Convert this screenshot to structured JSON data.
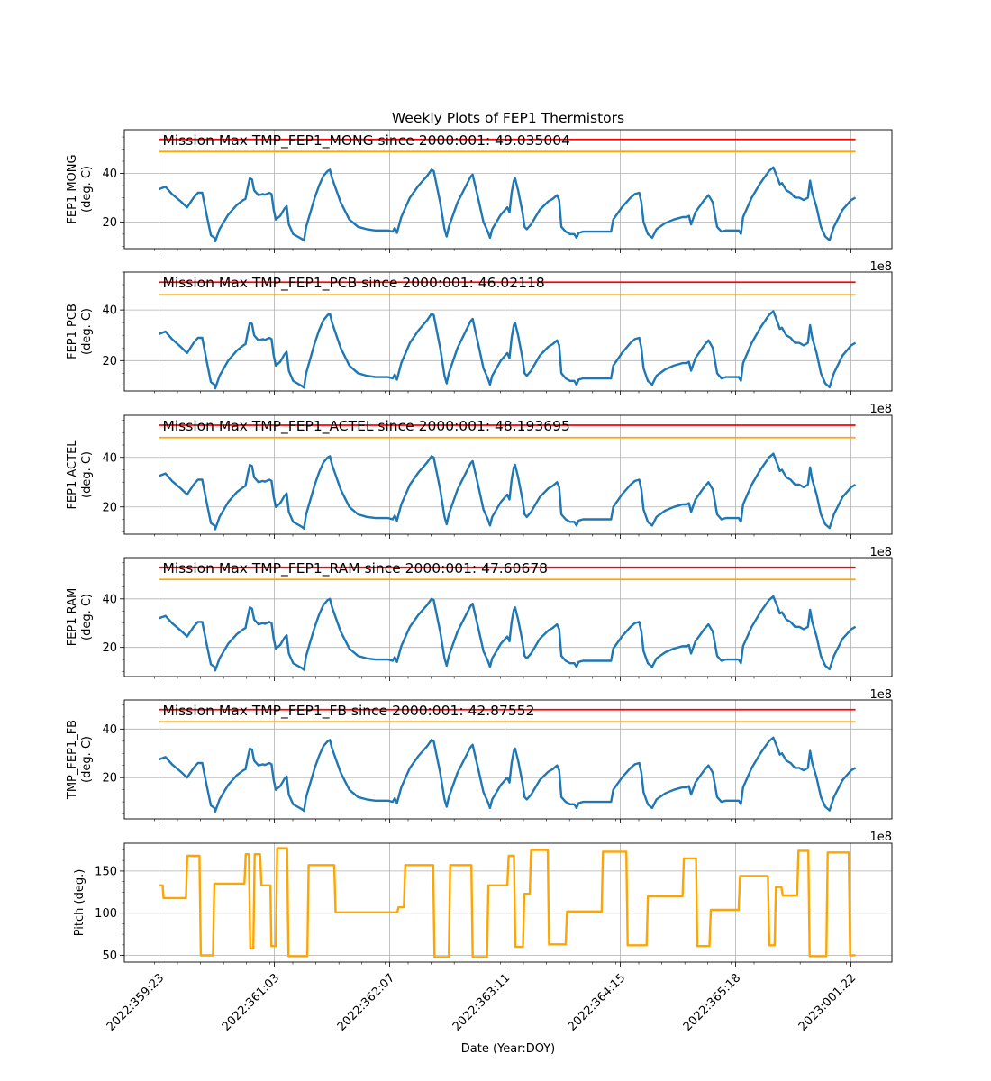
{
  "chart_data": {
    "type": "line",
    "title": "Weekly Plots of FEP1 Thermistors",
    "xlabel": "Date (Year:DOY)",
    "x_tick_labels": [
      "2022:359:23",
      "2022:361:03",
      "2022:362:07",
      "2022:363:11",
      "2022:364:15",
      "2022:365:18",
      "2023:001:22"
    ],
    "offset_text": "1e8",
    "x_range_hours": [
      -2,
      152
    ],
    "colors": {
      "data": "#1f77b4",
      "red_limit": "#ff0000",
      "yellow_limit": "#ffa500",
      "pitch": "#ffa500",
      "grid": "#b0b0b0"
    },
    "panels": [
      {
        "id": "mong",
        "ylabel": [
          "FEP1 MONG",
          "(deg. C)"
        ],
        "ylim": [
          9,
          58
        ],
        "yticks": [
          20,
          40
        ],
        "red_limit": 54,
        "yellow_limit": 49,
        "annotation": "Mission Max TMP_FEP1_MONG since 2000:001: 49.035004",
        "offset": 0,
        "show_offset": true
      },
      {
        "id": "pcb",
        "ylabel": [
          "FEP1 PCB",
          "(deg. C)"
        ],
        "ylim": [
          8,
          55
        ],
        "yticks": [
          20,
          40
        ],
        "red_limit": 51,
        "yellow_limit": 46,
        "annotation": "Mission Max TMP_FEP1_PCB since 2000:001: 46.02118",
        "offset": -3,
        "show_offset": true
      },
      {
        "id": "actel",
        "ylabel": [
          "FEP1 ACTEL",
          "(deg. C)"
        ],
        "ylim": [
          9,
          57
        ],
        "yticks": [
          20,
          40
        ],
        "red_limit": 53,
        "yellow_limit": 48,
        "annotation": "Mission Max TMP_FEP1_ACTEL since 2000:001: 48.193695",
        "offset": -1,
        "show_offset": true
      },
      {
        "id": "ram",
        "ylabel": [
          "FEP1 RAM",
          "(deg. C)"
        ],
        "ylim": [
          8,
          57
        ],
        "yticks": [
          20,
          40
        ],
        "red_limit": 53,
        "yellow_limit": 48,
        "annotation": "Mission Max TMP_FEP1_RAM since 2000:001: 47.60678",
        "offset": -1.5,
        "show_offset": true
      },
      {
        "id": "fb",
        "ylabel": [
          "TMP_FEP1_FB",
          "(deg. C)"
        ],
        "ylim": [
          3,
          52
        ],
        "yticks": [
          20,
          40
        ],
        "red_limit": 48,
        "yellow_limit": 43,
        "annotation": "Mission Max TMP_FEP1_FB since 2000:001: 42.87552",
        "offset": -6,
        "show_offset": true
      }
    ],
    "temperature_profile_hours": [
      [
        0,
        33.5
      ],
      [
        1.5,
        34.5
      ],
      [
        3,
        31.5
      ],
      [
        5,
        28.5
      ],
      [
        6.5,
        26
      ],
      [
        8,
        30
      ],
      [
        9,
        32
      ],
      [
        10,
        32
      ],
      [
        11,
        23
      ],
      [
        12,
        14.5
      ],
      [
        12.8,
        13.5
      ],
      [
        13,
        12
      ],
      [
        14,
        17
      ],
      [
        16,
        23
      ],
      [
        18,
        27
      ],
      [
        19.5,
        29
      ],
      [
        20,
        29.5
      ],
      [
        20.5,
        34
      ],
      [
        21,
        38
      ],
      [
        21.5,
        37.5
      ],
      [
        22,
        33
      ],
      [
        23,
        31
      ],
      [
        24,
        31.5
      ],
      [
        24.5,
        31.2
      ],
      [
        25.5,
        32
      ],
      [
        26,
        31.5
      ],
      [
        26.5,
        25
      ],
      [
        27,
        21
      ],
      [
        28,
        22.5
      ],
      [
        29,
        25.5
      ],
      [
        29.5,
        26.5
      ],
      [
        30,
        19
      ],
      [
        31,
        15
      ],
      [
        32,
        14
      ],
      [
        33,
        13
      ],
      [
        33.5,
        12.3
      ],
      [
        34,
        18
      ],
      [
        35,
        24
      ],
      [
        36,
        30
      ],
      [
        37,
        35
      ],
      [
        38,
        39
      ],
      [
        39,
        41
      ],
      [
        39.5,
        41.5
      ],
      [
        40,
        38
      ],
      [
        42,
        28
      ],
      [
        44,
        21
      ],
      [
        46,
        18
      ],
      [
        48,
        17
      ],
      [
        50,
        16.5
      ],
      [
        52,
        16.5
      ],
      [
        53,
        16.5
      ],
      [
        54,
        16
      ],
      [
        54.5,
        17.5
      ],
      [
        55,
        15.5
      ],
      [
        56,
        22
      ],
      [
        58,
        30
      ],
      [
        60,
        35
      ],
      [
        62,
        39
      ],
      [
        63,
        41.5
      ],
      [
        63.5,
        41
      ],
      [
        65,
        28
      ],
      [
        66,
        17
      ],
      [
        66.5,
        14
      ],
      [
        67,
        18
      ],
      [
        69,
        28
      ],
      [
        71,
        35
      ],
      [
        72,
        38.5
      ],
      [
        72.5,
        39.5
      ],
      [
        74,
        28
      ],
      [
        75,
        20
      ],
      [
        76,
        16
      ],
      [
        76.5,
        13.5
      ],
      [
        77,
        17
      ],
      [
        79,
        23
      ],
      [
        80.5,
        26
      ],
      [
        81,
        24
      ],
      [
        81.5,
        32
      ],
      [
        82,
        37
      ],
      [
        82.3,
        38
      ],
      [
        83,
        33
      ],
      [
        84,
        24
      ],
      [
        84.5,
        18
      ],
      [
        85,
        17
      ],
      [
        86,
        19
      ],
      [
        88,
        25
      ],
      [
        90,
        28.5
      ],
      [
        91,
        29.5
      ],
      [
        92,
        31
      ],
      [
        92.5,
        29
      ],
      [
        93,
        18
      ],
      [
        94,
        16
      ],
      [
        95,
        15
      ],
      [
        96,
        15
      ],
      [
        96.5,
        13.5
      ],
      [
        97,
        15.5
      ],
      [
        98,
        16
      ],
      [
        100,
        16
      ],
      [
        102,
        16
      ],
      [
        104,
        16
      ],
      [
        104.5,
        16
      ],
      [
        105,
        21
      ],
      [
        107,
        26
      ],
      [
        109,
        30
      ],
      [
        110,
        31.5
      ],
      [
        111,
        32
      ],
      [
        111.5,
        28
      ],
      [
        112,
        20
      ],
      [
        113,
        15
      ],
      [
        114,
        13.5
      ],
      [
        115,
        17
      ],
      [
        117,
        19.5
      ],
      [
        119,
        21
      ],
      [
        121,
        22
      ],
      [
        122,
        22
      ],
      [
        122.5,
        22.5
      ],
      [
        123,
        19
      ],
      [
        124,
        24
      ],
      [
        126,
        29
      ],
      [
        127,
        31
      ],
      [
        128,
        28
      ],
      [
        129,
        18
      ],
      [
        130,
        16
      ],
      [
        131,
        16.5
      ],
      [
        133,
        16.5
      ],
      [
        134,
        16.5
      ],
      [
        134.5,
        15
      ],
      [
        135,
        22
      ],
      [
        137,
        30
      ],
      [
        139,
        36
      ],
      [
        141,
        41
      ],
      [
        142,
        42.5
      ],
      [
        143,
        38
      ],
      [
        143.5,
        35.5
      ],
      [
        144,
        36
      ],
      [
        145,
        33
      ],
      [
        146,
        32
      ],
      [
        147,
        30
      ],
      [
        148,
        30
      ],
      [
        149,
        29
      ],
      [
        150,
        30
      ],
      [
        150.5,
        37
      ],
      [
        151,
        32
      ],
      [
        152,
        26
      ],
      [
        153,
        18
      ],
      [
        154,
        14
      ],
      [
        155,
        12.5
      ],
      [
        156,
        18
      ],
      [
        158,
        25
      ],
      [
        160,
        29
      ],
      [
        161,
        30
      ]
    ],
    "pitch_profile_hours": [
      [
        0,
        133
      ],
      [
        0.8,
        133
      ],
      [
        1,
        118
      ],
      [
        6,
        118
      ],
      [
        6.3,
        168
      ],
      [
        9,
        168
      ],
      [
        9.3,
        50
      ],
      [
        12,
        50
      ],
      [
        12.3,
        135
      ],
      [
        19,
        135
      ],
      [
        19.3,
        170
      ],
      [
        20,
        170
      ],
      [
        20.3,
        58
      ],
      [
        21,
        58
      ],
      [
        21.3,
        170
      ],
      [
        22.5,
        170
      ],
      [
        22.8,
        133
      ],
      [
        24.8,
        133
      ],
      [
        25,
        61
      ],
      [
        26,
        61
      ],
      [
        26.3,
        177
      ],
      [
        28.5,
        177
      ],
      [
        28.8,
        49
      ],
      [
        33,
        49
      ],
      [
        33.3,
        157
      ],
      [
        39,
        157
      ],
      [
        39.3,
        101
      ],
      [
        53,
        101
      ],
      [
        53.3,
        107
      ],
      [
        54.5,
        107
      ],
      [
        54.8,
        157
      ],
      [
        61,
        157
      ],
      [
        61.3,
        48
      ],
      [
        64.5,
        48
      ],
      [
        64.8,
        157
      ],
      [
        69.5,
        157
      ],
      [
        69.8,
        48
      ],
      [
        73,
        48
      ],
      [
        73.3,
        133
      ],
      [
        77.5,
        133
      ],
      [
        77.8,
        168
      ],
      [
        79,
        168
      ],
      [
        79.3,
        60
      ],
      [
        81,
        60
      ],
      [
        81.3,
        123
      ],
      [
        82.5,
        123
      ],
      [
        82.8,
        175
      ],
      [
        86.5,
        175
      ],
      [
        86.8,
        63
      ],
      [
        90.5,
        63
      ],
      [
        90.8,
        102
      ],
      [
        98.5,
        102
      ],
      [
        98.8,
        173
      ],
      [
        104,
        173
      ],
      [
        104.3,
        62
      ],
      [
        108.5,
        62
      ],
      [
        108.8,
        120
      ],
      [
        116.5,
        120
      ],
      [
        116.8,
        165
      ],
      [
        119.5,
        165
      ],
      [
        119.8,
        61
      ],
      [
        122.5,
        61
      ],
      [
        122.8,
        104
      ],
      [
        129,
        104
      ],
      [
        129.3,
        144
      ],
      [
        135.5,
        144
      ],
      [
        135.8,
        62
      ],
      [
        137,
        62
      ],
      [
        137.3,
        131
      ],
      [
        138.5,
        131
      ],
      [
        138.8,
        121
      ],
      [
        142,
        121
      ],
      [
        142.3,
        174
      ],
      [
        144.5,
        174
      ],
      [
        144.8,
        49
      ],
      [
        148.5,
        49
      ],
      [
        148.8,
        172
      ],
      [
        153.5,
        172
      ],
      [
        153.8,
        50
      ],
      [
        155,
        50
      ]
    ],
    "pitch_panel": {
      "ylabel": "Pitch (deg.)",
      "ylim": [
        42,
        183
      ],
      "yticks": [
        50,
        100,
        150
      ]
    }
  }
}
